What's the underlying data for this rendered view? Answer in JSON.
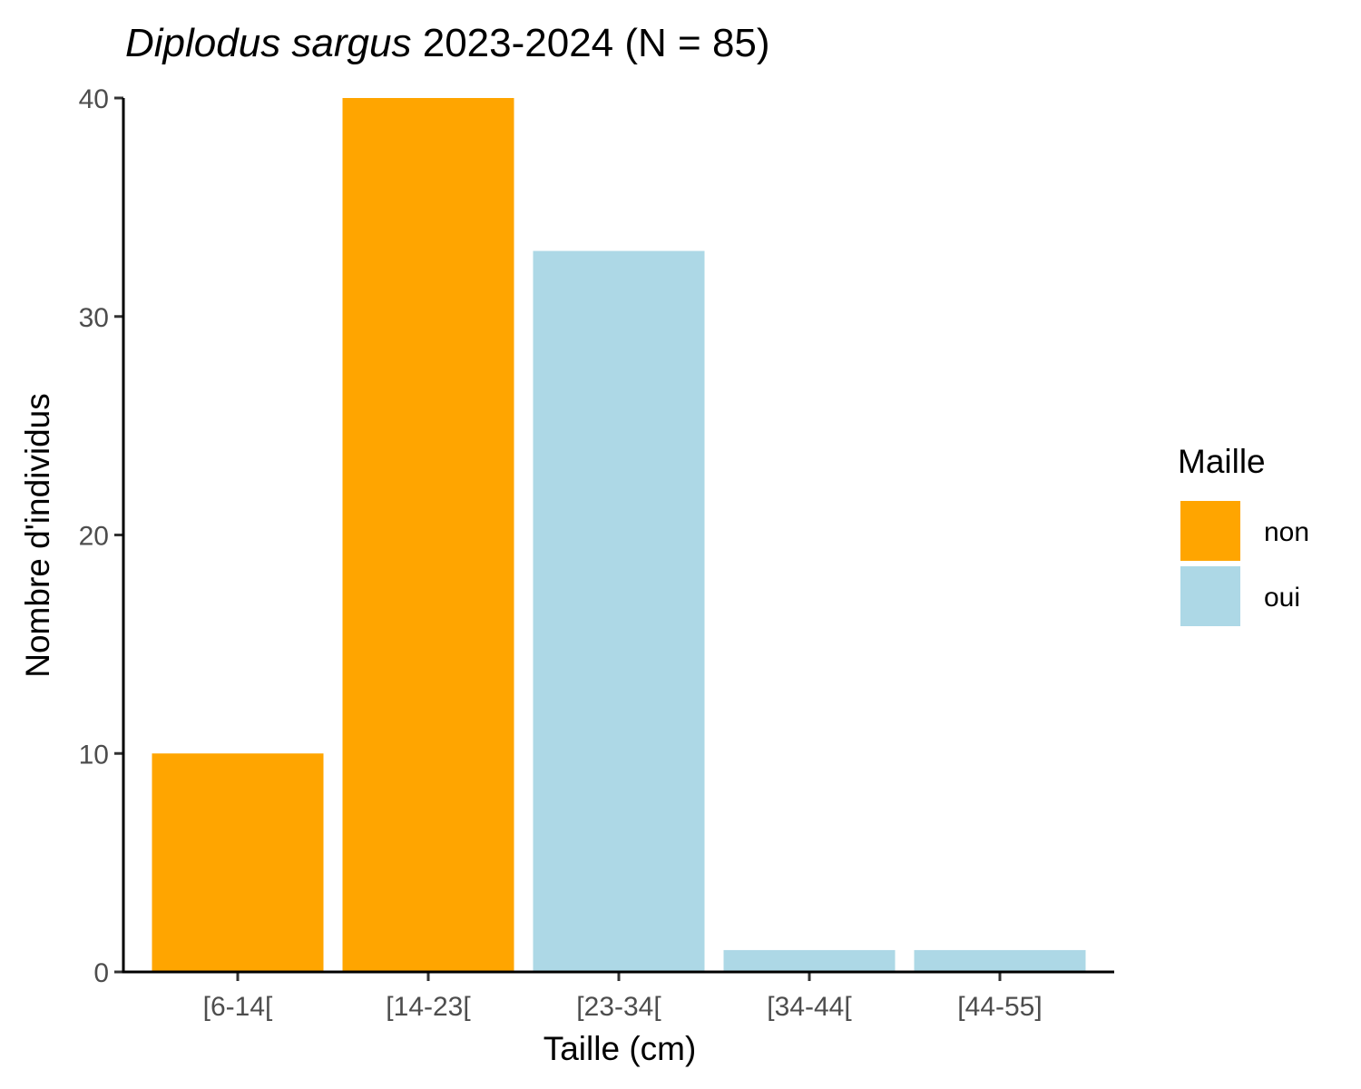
{
  "chart_data": {
    "type": "bar",
    "title_italic": "Diplodus sargus",
    "title_rest": " 2023-2024 (N = 85)",
    "xlabel": "Taille (cm)",
    "ylabel": "Nombre d'individus",
    "categories": [
      "[6-14[",
      "[14-23[",
      "[23-34[",
      "[34-44[",
      "[44-55]"
    ],
    "values": [
      10,
      40,
      33,
      1,
      1
    ],
    "groups": [
      "non",
      "non",
      "oui",
      "oui",
      "oui"
    ],
    "ylim": [
      0,
      40
    ],
    "yticks": [
      0,
      10,
      20,
      30,
      40
    ],
    "grid": false,
    "legend": {
      "title": "Maille",
      "position": "right",
      "entries": [
        {
          "label": "non",
          "color": "#FFA500"
        },
        {
          "label": "oui",
          "color": "#ADD8E6"
        }
      ]
    }
  }
}
